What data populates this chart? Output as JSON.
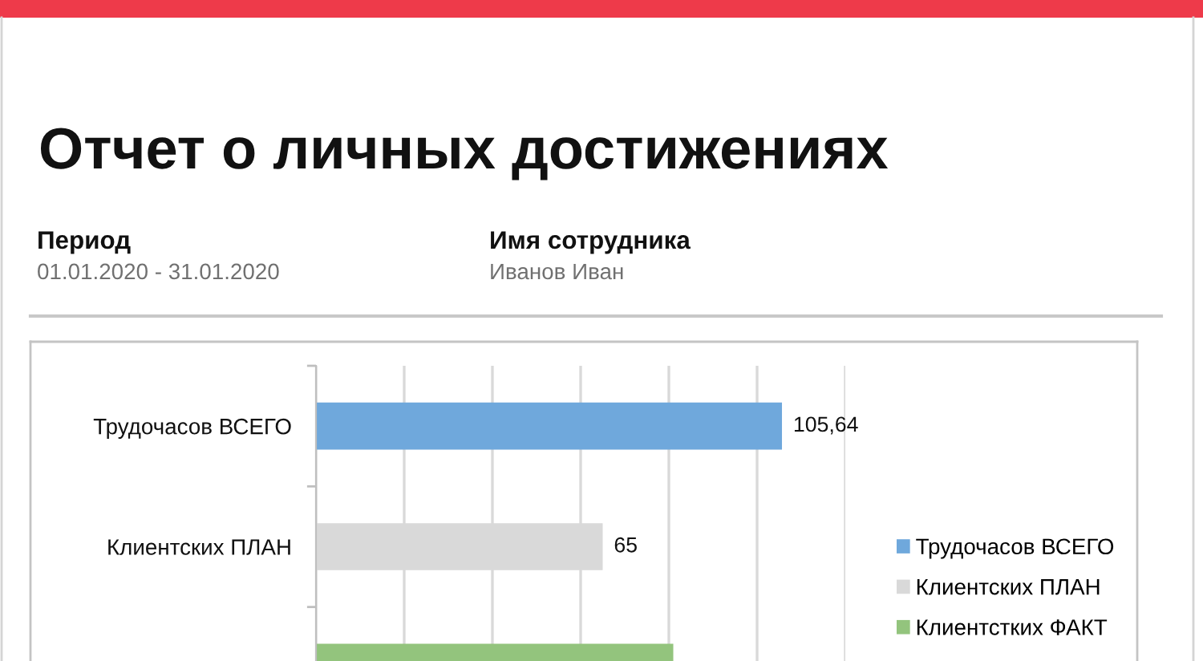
{
  "chart_data": {
    "type": "bar",
    "orientation": "horizontal",
    "stacked": true,
    "title": "Отчет о личных достижениях",
    "annotations": [
      "Период",
      "01.01.2020 - 31.01.2020",
      "Имя сотрудника",
      "Иванов Иван"
    ],
    "categories": [
      "Трудочасов ВСЕГО",
      "Клиентских ПЛАН",
      null
    ],
    "series": [
      {
        "name": "Трудочасов ВСЕГО",
        "color": "#6fa8dc",
        "values": [
          105.64,
          null,
          null
        ],
        "value_labels": [
          "105,64",
          null,
          null
        ]
      },
      {
        "name": "Клиентских ПЛАН",
        "color": "#d9d9d9",
        "values": [
          null,
          65,
          null
        ],
        "value_labels": [
          null,
          "65",
          null
        ]
      },
      {
        "name": "Клиентстких ФАКТ",
        "color": "#93c47d",
        "values": [
          null,
          null,
          81
        ]
      }
    ],
    "xlim": [
      0,
      120
    ],
    "xticks": [
      0,
      20,
      40,
      60,
      80,
      100,
      120
    ],
    "tick_labels": "y",
    "grid": "x",
    "legend": "right"
  }
}
